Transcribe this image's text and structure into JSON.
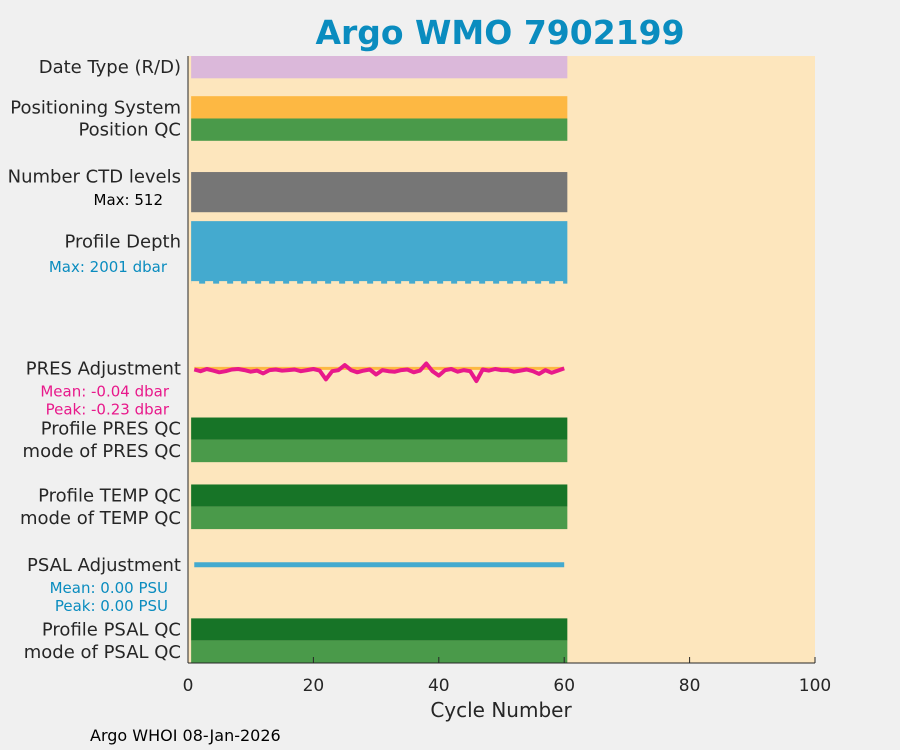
{
  "chart_data": {
    "type": "bar",
    "title": "Argo WMO 7902199",
    "xlabel": "Cycle Number",
    "xlim": [
      0,
      100
    ],
    "xticks": [
      0,
      20,
      40,
      60,
      80,
      100
    ],
    "data_extent": [
      0.5,
      60.5
    ],
    "rows": [
      {
        "id": "date-type",
        "label": "Date Type (R/D)",
        "y": [
          5.3,
          5.55
        ],
        "color": "#dbb8da",
        "kind": "bar"
      },
      {
        "id": "positioning-system",
        "label": "Positioning System",
        "y": [
          5.75,
          6.0
        ],
        "color": "#fdb843",
        "kind": "bar"
      },
      {
        "id": "position-qc",
        "label": "Position QC",
        "y": [
          6.0,
          6.25
        ],
        "color": "#4a9a4a",
        "kind": "bar"
      },
      {
        "id": "number-ctd-levels",
        "label": "Number CTD levels",
        "sublabel": "Max: 512",
        "sublabel_color": "#000000",
        "y": [
          6.6,
          7.05
        ],
        "color": "#767676",
        "kind": "bar"
      },
      {
        "id": "profile-depth",
        "label": "Profile Depth",
        "sublabel": "Max: 2001 dbar",
        "sublabel_color": "#0a8cbf",
        "y": [
          7.15,
          7.85
        ],
        "color": "#44aacf",
        "kind": "bar"
      }
    ],
    "rows_qc": [
      {
        "id": "profile-pres-qc",
        "label": "Profile PRES QC",
        "y": [
          9.35,
          9.6
        ],
        "color": "#177427"
      },
      {
        "id": "mode-pres-qc",
        "label": "mode of PRES QC",
        "y": [
          9.6,
          9.85
        ],
        "color": "#4a9a4a"
      },
      {
        "id": "profile-temp-qc",
        "label": "Profile TEMP QC",
        "y": [
          10.1,
          10.35
        ],
        "color": "#177427"
      },
      {
        "id": "mode-temp-qc",
        "label": "mode of TEMP QC",
        "y": [
          10.35,
          10.6
        ],
        "color": "#4a9a4a"
      },
      {
        "id": "profile-psal-qc",
        "label": "Profile PSAL QC",
        "y": [
          11.6,
          11.85
        ],
        "color": "#177427"
      },
      {
        "id": "mode-psal-qc",
        "label": "mode of PSAL QC",
        "y": [
          11.85,
          12.1
        ],
        "color": "#4a9a4a"
      }
    ],
    "pres_adjustment": {
      "label": "PRES Adjustment",
      "mean_label": "Mean: -0.04 dbar",
      "peak_label": "Peak: -0.23 dbar",
      "color": "#e8198b",
      "baseline_color": "#fdb843",
      "y_center": 8.8,
      "values": [
        -0.02,
        -0.05,
        -0.01,
        -0.04,
        -0.07,
        -0.05,
        -0.02,
        -0.01,
        -0.03,
        -0.06,
        -0.04,
        -0.09,
        -0.03,
        -0.02,
        -0.04,
        -0.03,
        -0.02,
        -0.05,
        -0.03,
        -0.01,
        -0.04,
        -0.2,
        -0.05,
        -0.03,
        0.06,
        -0.03,
        -0.07,
        -0.04,
        -0.02,
        -0.11,
        -0.03,
        -0.05,
        -0.06,
        -0.03,
        -0.02,
        -0.07,
        -0.04,
        0.09,
        -0.05,
        -0.13,
        -0.03,
        -0.01,
        -0.06,
        -0.03,
        -0.05,
        -0.23,
        -0.02,
        -0.04,
        -0.01,
        -0.03,
        -0.03,
        -0.06,
        -0.04,
        -0.02,
        -0.05,
        -0.1,
        -0.03,
        -0.08,
        -0.04,
        0.0
      ]
    },
    "psal_adjustment": {
      "label": "PSAL Adjustment",
      "mean_label": "Mean: 0.00 PSU",
      "peak_label": "Peak: 0.00 PSU",
      "color": "#44aacf",
      "y_center": 11.0,
      "x_range": [
        1,
        60
      ]
    },
    "colors": {
      "plot_bg": "#fde6bd",
      "figure_bg": "#f0f0f0"
    }
  },
  "footer": "Argo WHOI 08-Jan-2026"
}
